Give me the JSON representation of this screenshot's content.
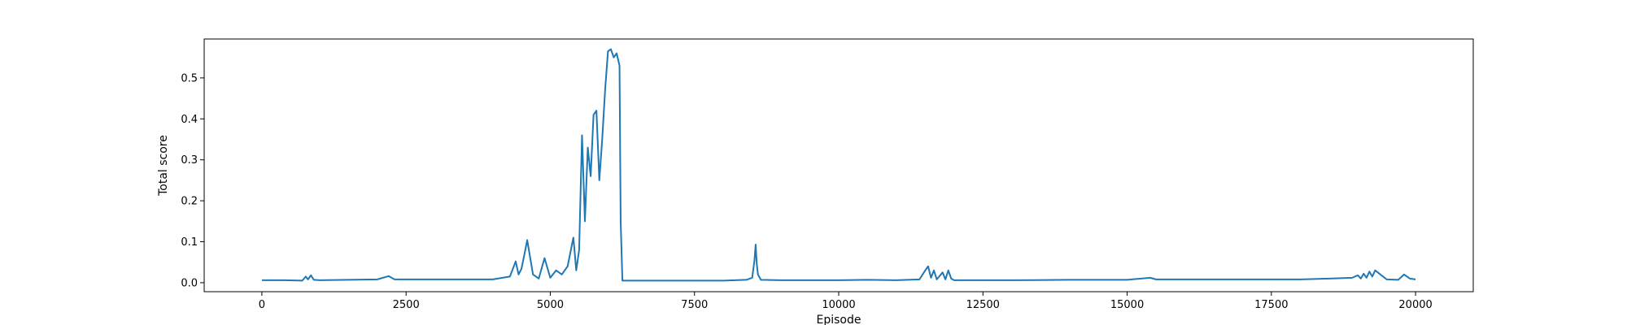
{
  "chart_data": {
    "type": "line",
    "title": "",
    "xlabel": "Episode",
    "ylabel": "Total score",
    "xlim": [
      -1000,
      21000
    ],
    "ylim": [
      -0.022,
      0.595
    ],
    "grid": false,
    "xticks": [
      0,
      2500,
      5000,
      7500,
      10000,
      12500,
      15000,
      17500,
      20000
    ],
    "xtick_labels": [
      "0",
      "2500",
      "5000",
      "7500",
      "10000",
      "12500",
      "15000",
      "17500",
      "20000"
    ],
    "yticks": [
      0.0,
      0.1,
      0.2,
      0.3,
      0.4,
      0.5
    ],
    "ytick_labels": [
      "0.0",
      "0.1",
      "0.2",
      "0.3",
      "0.4",
      "0.5"
    ],
    "series": [
      {
        "color": "#1f77b4",
        "x": [
          0,
          400,
          700,
          760,
          800,
          850,
          900,
          1000,
          1500,
          2000,
          2200,
          2300,
          2500,
          3000,
          3500,
          4000,
          4300,
          4400,
          4450,
          4500,
          4550,
          4600,
          4700,
          4800,
          4900,
          5000,
          5100,
          5200,
          5300,
          5400,
          5450,
          5500,
          5550,
          5600,
          5650,
          5700,
          5750,
          5800,
          5850,
          5900,
          5950,
          6000,
          6050,
          6100,
          6150,
          6200,
          6220,
          6250,
          6500,
          7000,
          7500,
          8000,
          8400,
          8500,
          8540,
          8560,
          8580,
          8600,
          8650,
          9000,
          10000,
          10500,
          11000,
          11400,
          11500,
          11550,
          11600,
          11650,
          11700,
          11800,
          11850,
          11900,
          11950,
          12000,
          13000,
          14000,
          15000,
          15400,
          15500,
          16000,
          17000,
          17500,
          18000,
          18500,
          18900,
          19000,
          19050,
          19100,
          19150,
          19200,
          19250,
          19300,
          19500,
          19700,
          19800,
          19900,
          20000
        ],
        "y": [
          0.006,
          0.006,
          0.005,
          0.015,
          0.008,
          0.018,
          0.007,
          0.006,
          0.007,
          0.008,
          0.016,
          0.008,
          0.008,
          0.008,
          0.008,
          0.008,
          0.015,
          0.052,
          0.02,
          0.034,
          0.068,
          0.104,
          0.02,
          0.01,
          0.06,
          0.012,
          0.03,
          0.02,
          0.04,
          0.11,
          0.03,
          0.08,
          0.36,
          0.15,
          0.33,
          0.26,
          0.41,
          0.42,
          0.25,
          0.35,
          0.47,
          0.565,
          0.57,
          0.55,
          0.56,
          0.53,
          0.15,
          0.005,
          0.005,
          0.005,
          0.005,
          0.005,
          0.007,
          0.012,
          0.055,
          0.093,
          0.045,
          0.02,
          0.007,
          0.006,
          0.006,
          0.007,
          0.006,
          0.008,
          0.03,
          0.04,
          0.012,
          0.03,
          0.008,
          0.025,
          0.008,
          0.03,
          0.01,
          0.006,
          0.006,
          0.007,
          0.007,
          0.012,
          0.008,
          0.008,
          0.008,
          0.008,
          0.008,
          0.01,
          0.012,
          0.018,
          0.01,
          0.022,
          0.012,
          0.027,
          0.015,
          0.03,
          0.008,
          0.007,
          0.02,
          0.01,
          0.008
        ]
      }
    ]
  }
}
